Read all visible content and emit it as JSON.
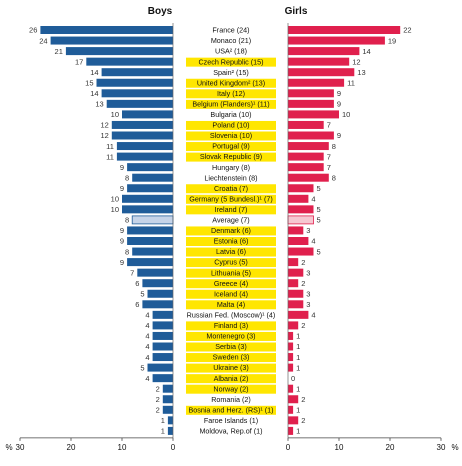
{
  "chart_data": {
    "type": "bar",
    "orientation": "horizontal-butterfly",
    "series": [
      {
        "name": "Boys",
        "color": "#1f5c99",
        "highlight_color": "#c5d3e8"
      },
      {
        "name": "Girls",
        "color": "#e0204d",
        "highlight_color": "#f6c7d1"
      }
    ],
    "axis_unit_label": "%",
    "boys_axis": {
      "ticks": [
        30,
        20,
        10,
        0
      ],
      "range": [
        0,
        30
      ]
    },
    "girls_axis": {
      "ticks": [
        0,
        10,
        20,
        30
      ],
      "range": [
        0,
        30
      ]
    },
    "label_highlight_color": "#ffe600",
    "rows": [
      {
        "label": "France (24)",
        "boys": 26,
        "girls": 22,
        "highlighted": false
      },
      {
        "label": "Monaco (21)",
        "boys": 24,
        "girls": 19,
        "highlighted": false
      },
      {
        "label": "USA² (18)",
        "boys": 21,
        "girls": 14,
        "highlighted": false
      },
      {
        "label": "Czech Republic (15)",
        "boys": 17,
        "girls": 12,
        "highlighted": true
      },
      {
        "label": "Spain² (15)",
        "boys": 14,
        "girls": 13,
        "highlighted": false
      },
      {
        "label": "United Kingdom² (13)",
        "boys": 15,
        "girls": 11,
        "highlighted": true
      },
      {
        "label": "Italy (12)",
        "boys": 14,
        "girls": 9,
        "highlighted": true
      },
      {
        "label": "Belgium (Flanders)¹ (11)",
        "boys": 13,
        "girls": 9,
        "highlighted": true
      },
      {
        "label": "Bulgaria (10)",
        "boys": 10,
        "girls": 10,
        "highlighted": false
      },
      {
        "label": "Poland (10)",
        "boys": 12,
        "girls": 7,
        "highlighted": true
      },
      {
        "label": "Slovenia (10)",
        "boys": 12,
        "girls": 9,
        "highlighted": true
      },
      {
        "label": "Portugal (9)",
        "boys": 11,
        "girls": 8,
        "highlighted": true
      },
      {
        "label": "Slovak Republic (9)",
        "boys": 11,
        "girls": 7,
        "highlighted": true
      },
      {
        "label": "Hungary (8)",
        "boys": 9,
        "girls": 7,
        "highlighted": false
      },
      {
        "label": "Liechtenstein (8)",
        "boys": 8,
        "girls": 8,
        "highlighted": false
      },
      {
        "label": "Croatia (7)",
        "boys": 9,
        "girls": 5,
        "highlighted": true
      },
      {
        "label": "Germany (5 Bundesl.)¹ (7)",
        "boys": 10,
        "girls": 4,
        "highlighted": true
      },
      {
        "label": "Ireland (7)",
        "boys": 10,
        "girls": 5,
        "highlighted": true
      },
      {
        "label": "Average (7)",
        "boys": 8,
        "girls": 5,
        "highlighted": false,
        "is_average": true
      },
      {
        "label": "Denmark (6)",
        "boys": 9,
        "girls": 3,
        "highlighted": true
      },
      {
        "label": "Estonia (6)",
        "boys": 9,
        "girls": 4,
        "highlighted": true
      },
      {
        "label": "Latvia (6)",
        "boys": 8,
        "girls": 5,
        "highlighted": true
      },
      {
        "label": "Cyprus (5)",
        "boys": 9,
        "girls": 2,
        "highlighted": true
      },
      {
        "label": "Lithuania (5)",
        "boys": 7,
        "girls": 3,
        "highlighted": true
      },
      {
        "label": "Greece (4)",
        "boys": 6,
        "girls": 2,
        "highlighted": true
      },
      {
        "label": "Iceland (4)",
        "boys": 5,
        "girls": 3,
        "highlighted": true
      },
      {
        "label": "Malta (4)",
        "boys": 6,
        "girls": 3,
        "highlighted": true
      },
      {
        "label": "Russian Fed. (Moscow)¹ (4)",
        "boys": 4,
        "girls": 4,
        "highlighted": false
      },
      {
        "label": "Finland (3)",
        "boys": 4,
        "girls": 2,
        "highlighted": true
      },
      {
        "label": "Montenegro (3)",
        "boys": 4,
        "girls": 1,
        "highlighted": true
      },
      {
        "label": "Serbia (3)",
        "boys": 4,
        "girls": 1,
        "highlighted": true
      },
      {
        "label": "Sweden (3)",
        "boys": 4,
        "girls": 1,
        "highlighted": true
      },
      {
        "label": "Ukraine (3)",
        "boys": 5,
        "girls": 1,
        "highlighted": true
      },
      {
        "label": "Albania (2)",
        "boys": 4,
        "girls": 0,
        "highlighted": true
      },
      {
        "label": "Norway (2)",
        "boys": 2,
        "girls": 1,
        "highlighted": true
      },
      {
        "label": "Romania (2)",
        "boys": 2,
        "girls": 2,
        "highlighted": false
      },
      {
        "label": "Bosnia and Herz. (RS)¹ (1)",
        "boys": 2,
        "girls": 1,
        "highlighted": true
      },
      {
        "label": "Faroe Islands (1)",
        "boys": 1,
        "girls": 2,
        "highlighted": false
      },
      {
        "label": "Moldova, Rep.of (1)",
        "boys": 1,
        "girls": 1,
        "highlighted": false
      }
    ]
  }
}
